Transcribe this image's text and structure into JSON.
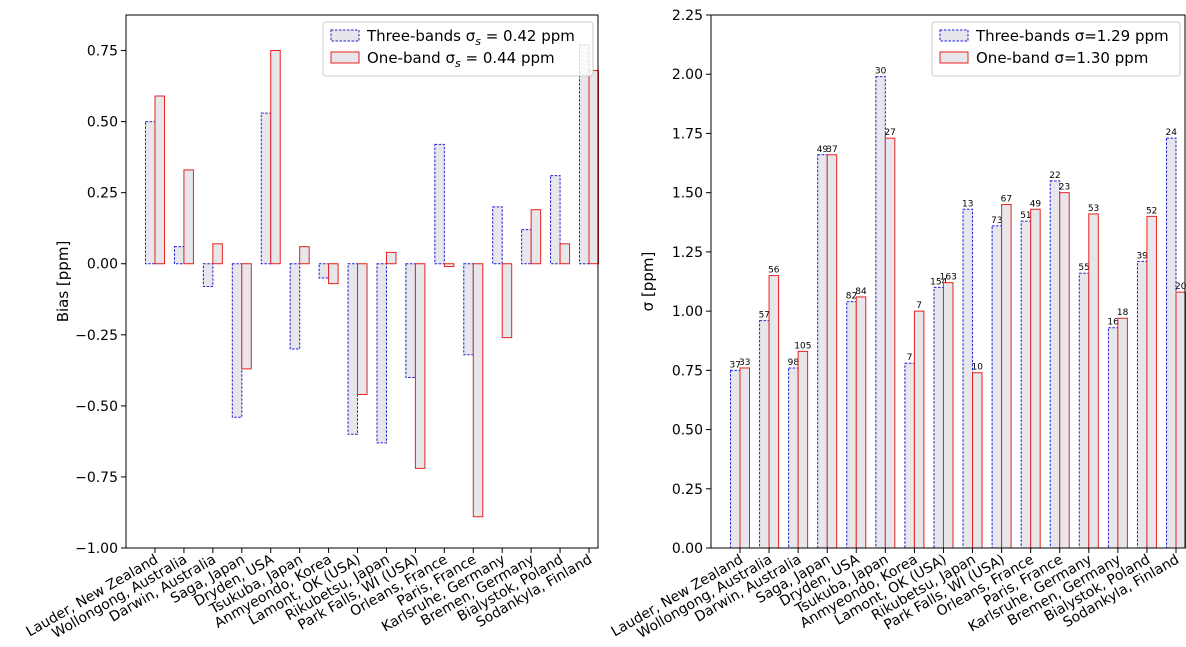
{
  "stations": [
    "Lauder, New Zealand",
    "Wollongong, Australia",
    "Darwin, Australia",
    "Saga, Japan",
    "Dryden, USA",
    "Tsukuba, Japan",
    "Anmyeondo, Korea",
    "Lamont, OK (USA)",
    "Rikubetsu, Japan",
    "Park Falls, WI (USA)",
    "Orleans, France",
    "Paris, France",
    "Karlsruhe, Germany",
    "Bremen, Germany",
    "Bialystok, Poland",
    "Sodankyla, Finland"
  ],
  "colors": {
    "three_band_edge": "#1f1fd6",
    "one_band_edge": "#e8221e",
    "bar_fill": "#e6e6eb"
  },
  "chart_data": [
    {
      "type": "bar",
      "ylabel": "Bias [ppm]",
      "ylim": [
        -1.0,
        0.875
      ],
      "yticks": [
        "-1.00",
        "-0.75",
        "-0.50",
        "-0.25",
        "0.00",
        "0.25",
        "0.50",
        "0.75"
      ],
      "legend": {
        "placement": "top-right",
        "entries": [
          "Three-bands σ_s = 0.42 ppm",
          "One-band σ_s = 0.44 ppm"
        ]
      },
      "series": [
        {
          "name": "Three-bands",
          "values": [
            0.5,
            0.06,
            -0.08,
            -0.54,
            0.53,
            -0.3,
            -0.05,
            -0.6,
            -0.63,
            -0.4,
            0.42,
            -0.32,
            0.2,
            0.12,
            0.31,
            0.77
          ]
        },
        {
          "name": "One-band",
          "values": [
            0.59,
            0.33,
            0.07,
            -0.37,
            0.75,
            0.06,
            -0.07,
            -0.46,
            0.04,
            -0.72,
            -0.01,
            -0.89,
            -0.26,
            0.19,
            0.07,
            0.68
          ]
        }
      ]
    },
    {
      "type": "bar",
      "ylabel": "σ [ppm]",
      "ylim": [
        0.0,
        2.25
      ],
      "yticks": [
        "0.00",
        "0.25",
        "0.50",
        "0.75",
        "1.00",
        "1.25",
        "1.50",
        "1.75",
        "2.00",
        "2.25"
      ],
      "legend": {
        "placement": "top-right",
        "entries": [
          "Three-bands σ=1.29 ppm",
          "One-band σ=1.30 ppm"
        ]
      },
      "series": [
        {
          "name": "Three-bands",
          "values": [
            0.75,
            0.96,
            0.76,
            1.66,
            1.04,
            1.99,
            0.78,
            1.1,
            1.43,
            1.36,
            1.38,
            1.55,
            1.16,
            0.93,
            1.21,
            1.73
          ],
          "counts": [
            "37",
            "57",
            "98",
            "49",
            "82",
            "30",
            "7",
            "154",
            "13",
            "73",
            "51",
            "22",
            "55",
            "16",
            "39",
            "24"
          ]
        },
        {
          "name": "One-band",
          "values": [
            0.76,
            1.15,
            0.83,
            1.66,
            1.06,
            1.73,
            1.0,
            1.12,
            0.74,
            1.45,
            1.43,
            1.5,
            1.41,
            0.97,
            1.4,
            1.08
          ],
          "counts": [
            "33",
            "56",
            "105",
            "37",
            "84",
            "27",
            "7",
            "163",
            "10",
            "67",
            "49",
            "23",
            "53",
            "18",
            "52",
            "20"
          ]
        }
      ]
    }
  ]
}
